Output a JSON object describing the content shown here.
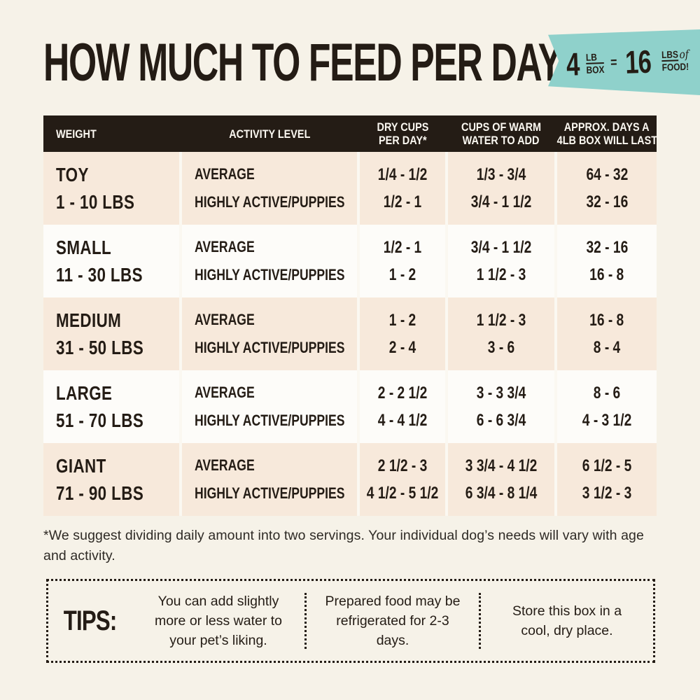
{
  "title": "HOW MUCH TO FEED PER DAY",
  "badge": {
    "qty1": "4",
    "unit1_top": "LB",
    "unit1_bottom": "BOX",
    "equals": "=",
    "qty2": "16",
    "unit2_top": "LBS",
    "of": "of",
    "unit2_bottom": "FOOD!"
  },
  "table": {
    "headers": [
      {
        "l1": "WEIGHT",
        "l2": ""
      },
      {
        "l1": "ACTIVITY LEVEL",
        "l2": ""
      },
      {
        "l1": "DRY CUPS",
        "l2": "PER DAY*"
      },
      {
        "l1": "CUPS OF WARM",
        "l2": "WATER TO ADD"
      },
      {
        "l1": "APPROX. DAYS A",
        "l2": "4LB BOX WILL LAST"
      }
    ],
    "rows": [
      {
        "size": "TOY",
        "weight": "1 - 10 LBS",
        "activity1": "AVERAGE",
        "activity2": "HIGHLY ACTIVE/PUPPIES",
        "dry1": "1/4 - 1/2",
        "dry2": "1/2 - 1",
        "water1": "1/3 - 3/4",
        "water2": "3/4 - 1 1/2",
        "days1": "64 - 32",
        "days2": "32 - 16"
      },
      {
        "size": "SMALL",
        "weight": "11 - 30 LBS",
        "activity1": "AVERAGE",
        "activity2": "HIGHLY ACTIVE/PUPPIES",
        "dry1": "1/2 - 1",
        "dry2": "1 - 2",
        "water1": "3/4 - 1 1/2",
        "water2": "1 1/2 - 3",
        "days1": "32 - 16",
        "days2": "16 - 8"
      },
      {
        "size": "MEDIUM",
        "weight": "31 - 50 LBS",
        "activity1": "AVERAGE",
        "activity2": "HIGHLY ACTIVE/PUPPIES",
        "dry1": "1 - 2",
        "dry2": "2 - 4",
        "water1": "1 1/2 - 3",
        "water2": "3 - 6",
        "days1": "16 - 8",
        "days2": "8 - 4"
      },
      {
        "size": "LARGE",
        "weight": "51 - 70 LBS",
        "activity1": "AVERAGE",
        "activity2": "HIGHLY ACTIVE/PUPPIES",
        "dry1": "2 - 2 1/2",
        "dry2": "4 - 4 1/2",
        "water1": "3 - 3 3/4",
        "water2": "6 - 6 3/4",
        "days1": "8 - 6",
        "days2": "4 - 3 1/2"
      },
      {
        "size": "GIANT",
        "weight": "71 - 90 LBS",
        "activity1": "AVERAGE",
        "activity2": "HIGHLY ACTIVE/PUPPIES",
        "dry1": "2 1/2 - 3",
        "dry2": "4 1/2 - 5 1/2",
        "water1": "3 3/4 - 4 1/2",
        "water2": "6 3/4 - 8 1/4",
        "days1": "6 1/2 - 5",
        "days2": "3 1/2 - 3"
      }
    ]
  },
  "footnote": "*We suggest dividing daily amount into two servings. Your individual dog’s needs will vary with age and activity.",
  "tips": {
    "label": "TIPS:",
    "items": [
      "You can add slightly more or less water to your pet’s liking.",
      "Prepared food may be refrigerated for 2-3 days.",
      "Store this box in a cool, dry place."
    ]
  },
  "colors": {
    "accent_teal": "#8FD1CB",
    "ink_dark": "#241C15",
    "row_peach": "#F7E9DB",
    "row_white": "#FDFCF9",
    "page_cream": "#F6F2E8"
  }
}
